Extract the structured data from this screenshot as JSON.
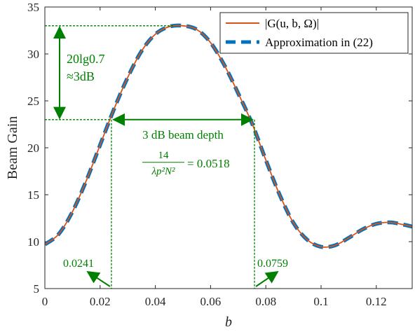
{
  "chart_data": {
    "type": "line",
    "xlabel": "b",
    "ylabel": "Beam Gain",
    "xlim": [
      0,
      0.133
    ],
    "ylim": [
      5,
      35
    ],
    "xticks": [
      0,
      0.02,
      0.04,
      0.06,
      0.08,
      0.1,
      0.12
    ],
    "xtick_labels": [
      "0",
      "0.02",
      "0.04",
      "0.06",
      "0.08",
      "0.1",
      "0.12"
    ],
    "yticks": [
      5,
      10,
      15,
      20,
      25,
      30,
      35
    ],
    "ytick_labels": [
      "5",
      "10",
      "15",
      "20",
      "25",
      "30",
      "35"
    ],
    "grid": false,
    "legend_position": "top-right",
    "series": [
      {
        "name": "|G(u, b, Ω)|",
        "style": "solid",
        "color": "#D95319",
        "x": [
          0,
          0.005,
          0.01,
          0.015,
          0.02,
          0.025,
          0.03,
          0.035,
          0.04,
          0.045,
          0.05,
          0.055,
          0.06,
          0.065,
          0.07,
          0.075,
          0.08,
          0.085,
          0.09,
          0.095,
          0.1,
          0.105,
          0.11,
          0.115,
          0.12,
          0.125,
          0.13,
          0.133
        ],
        "y": [
          9.7,
          10.8,
          13.2,
          16.5,
          20.3,
          24.1,
          27.5,
          30.3,
          32.1,
          32.9,
          33.0,
          32.6,
          31.2,
          28.8,
          25.8,
          22.6,
          18.7,
          15.0,
          12.0,
          10.2,
          9.45,
          9.6,
          10.4,
          11.3,
          11.9,
          12.05,
          11.8,
          11.6
        ]
      },
      {
        "name": "Approximation in (22)",
        "style": "dashed",
        "color": "#0072BD",
        "x": [
          0,
          0.005,
          0.01,
          0.015,
          0.02,
          0.025,
          0.03,
          0.035,
          0.04,
          0.045,
          0.05,
          0.055,
          0.06,
          0.065,
          0.07,
          0.075,
          0.08,
          0.085,
          0.09,
          0.095,
          0.1,
          0.105,
          0.11,
          0.115,
          0.12,
          0.125,
          0.13,
          0.133
        ],
        "y": [
          9.7,
          10.8,
          13.2,
          16.5,
          20.3,
          24.1,
          27.5,
          30.3,
          32.1,
          32.9,
          33.0,
          32.6,
          31.2,
          28.8,
          25.8,
          22.6,
          18.7,
          15.0,
          12.0,
          10.2,
          9.45,
          9.6,
          10.4,
          11.3,
          11.9,
          12.05,
          11.8,
          11.6
        ]
      }
    ],
    "annotations": {
      "peak_level": 33.0,
      "half_level": 23.0,
      "left_b": 0.0241,
      "right_b": 0.0759,
      "gain_drop_line1": "20lg0.7",
      "gain_drop_line2": "≈3dB",
      "beam_depth_label": "3 dB beam depth",
      "fraction_numerator": "14",
      "fraction_denominator": "λp²N²",
      "fraction_value": "= 0.0518",
      "left_value_label": "0.0241",
      "right_value_label": "0.0759"
    }
  },
  "colors": {
    "series_solid": "#D95319",
    "series_dashed": "#0072BD",
    "annotation": "#008000",
    "axis": "#262626"
  }
}
